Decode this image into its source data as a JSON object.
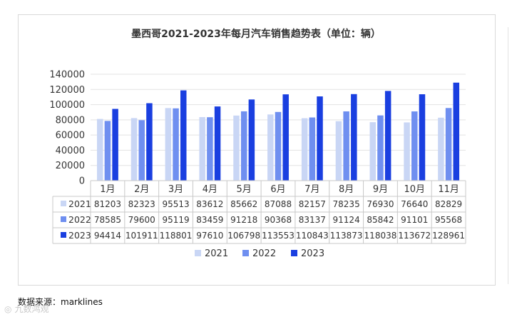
{
  "chart_data": {
    "type": "bar",
    "title": "墨西哥2021-2023年每月汽车销售趋势表（单位：辆）",
    "categories": [
      "1月",
      "2月",
      "3月",
      "4月",
      "5月",
      "6月",
      "7月",
      "8月",
      "9月",
      "10月",
      "11月"
    ],
    "series": [
      {
        "name": "2021",
        "color": "#c9d6f5",
        "values": [
          81203,
          82323,
          95513,
          83612,
          85662,
          87088,
          82157,
          78235,
          76930,
          76640,
          82829
        ]
      },
      {
        "name": "2022",
        "color": "#6f8ff0",
        "values": [
          78585,
          79600,
          95119,
          83459,
          91218,
          90368,
          83137,
          91124,
          85842,
          91101,
          95568
        ]
      },
      {
        "name": "2023",
        "color": "#1a3fe0",
        "values": [
          94414,
          101911,
          118801,
          97610,
          106798,
          113553,
          110843,
          113873,
          118038,
          113672,
          128961
        ]
      }
    ],
    "y_ticks": [
      "0",
      "20000",
      "40000",
      "60000",
      "80000",
      "100000",
      "120000",
      "140000"
    ],
    "ylim": [
      0,
      140000
    ],
    "grid": true,
    "legend_position": "bottom",
    "has_data_table": true
  },
  "footer": {
    "source": "数据来源：marklines",
    "watermark": "九数鸿观"
  }
}
